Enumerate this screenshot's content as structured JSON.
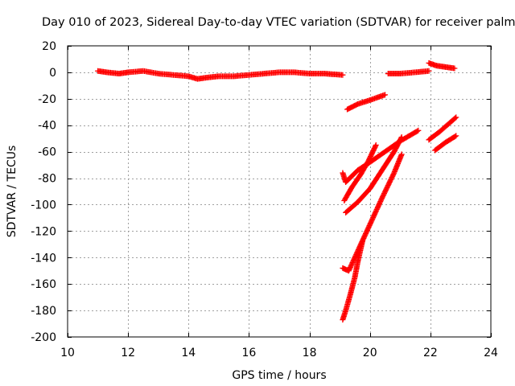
{
  "chart_data": {
    "type": "scatter",
    "title": "Day 010 of 2023, Sidereal Day-to-day VTEC variation (SDTVAR) for receiver palm",
    "xlabel": "GPS time / hours",
    "ylabel": "SDTVAR / TECUs",
    "xlim": [
      10,
      24
    ],
    "ylim": [
      -200,
      20
    ],
    "xticks": [
      10,
      12,
      14,
      16,
      18,
      20,
      22,
      24
    ],
    "yticks": [
      20,
      0,
      -20,
      -40,
      -60,
      -80,
      -100,
      -120,
      -140,
      -160,
      -180,
      -200
    ],
    "grid": true,
    "marker": "plus",
    "color": "#ff0000",
    "tracks": [
      {
        "points": [
          [
            11.0,
            1
          ],
          [
            11.3,
            0
          ],
          [
            11.7,
            -1
          ],
          [
            12.0,
            0
          ],
          [
            12.5,
            1
          ],
          [
            13.0,
            -1
          ],
          [
            13.5,
            -2
          ],
          [
            14.0,
            -3
          ],
          [
            14.3,
            -5
          ],
          [
            14.6,
            -4
          ],
          [
            15.0,
            -3
          ],
          [
            15.5,
            -3
          ],
          [
            16.0,
            -2
          ],
          [
            16.5,
            -1
          ],
          [
            17.0,
            0
          ],
          [
            17.5,
            0
          ],
          [
            18.0,
            -1
          ],
          [
            18.5,
            -1
          ],
          [
            19.1,
            -2
          ]
        ]
      },
      {
        "points": [
          [
            20.6,
            -1
          ],
          [
            21.0,
            -1
          ],
          [
            21.5,
            0
          ],
          [
            21.95,
            1
          ]
        ]
      },
      {
        "points": [
          [
            21.95,
            7
          ],
          [
            22.2,
            5
          ],
          [
            22.5,
            4
          ],
          [
            22.8,
            3
          ]
        ]
      },
      {
        "points": [
          [
            19.25,
            -28
          ],
          [
            19.6,
            -24
          ],
          [
            20.0,
            -21
          ],
          [
            20.5,
            -17
          ]
        ]
      },
      {
        "points": [
          [
            21.95,
            -51
          ],
          [
            22.3,
            -45
          ],
          [
            22.6,
            -39
          ],
          [
            22.85,
            -34
          ]
        ]
      },
      {
        "points": [
          [
            22.15,
            -59
          ],
          [
            22.5,
            -53
          ],
          [
            22.85,
            -48
          ]
        ]
      },
      {
        "points": [
          [
            19.1,
            -76
          ],
          [
            19.2,
            -83
          ],
          [
            19.6,
            -74
          ],
          [
            20.0,
            -68
          ],
          [
            20.5,
            -60
          ],
          [
            21.0,
            -52
          ],
          [
            21.6,
            -44
          ]
        ]
      },
      {
        "points": [
          [
            19.15,
            -97
          ],
          [
            19.4,
            -87
          ],
          [
            19.7,
            -77
          ],
          [
            19.95,
            -67
          ],
          [
            20.2,
            -55
          ]
        ]
      },
      {
        "points": [
          [
            19.2,
            -106
          ],
          [
            19.6,
            -98
          ],
          [
            20.0,
            -88
          ],
          [
            20.4,
            -74
          ],
          [
            20.8,
            -60
          ],
          [
            21.05,
            -49
          ]
        ]
      },
      {
        "points": [
          [
            19.1,
            -148
          ],
          [
            19.3,
            -150
          ],
          [
            19.6,
            -135
          ],
          [
            20.0,
            -115
          ],
          [
            20.4,
            -95
          ],
          [
            20.8,
            -76
          ],
          [
            21.05,
            -62
          ]
        ]
      },
      {
        "points": [
          [
            19.1,
            -187
          ],
          [
            19.2,
            -180
          ],
          [
            19.35,
            -168
          ],
          [
            19.5,
            -155
          ],
          [
            19.6,
            -143
          ],
          [
            19.75,
            -128
          ]
        ]
      }
    ]
  }
}
